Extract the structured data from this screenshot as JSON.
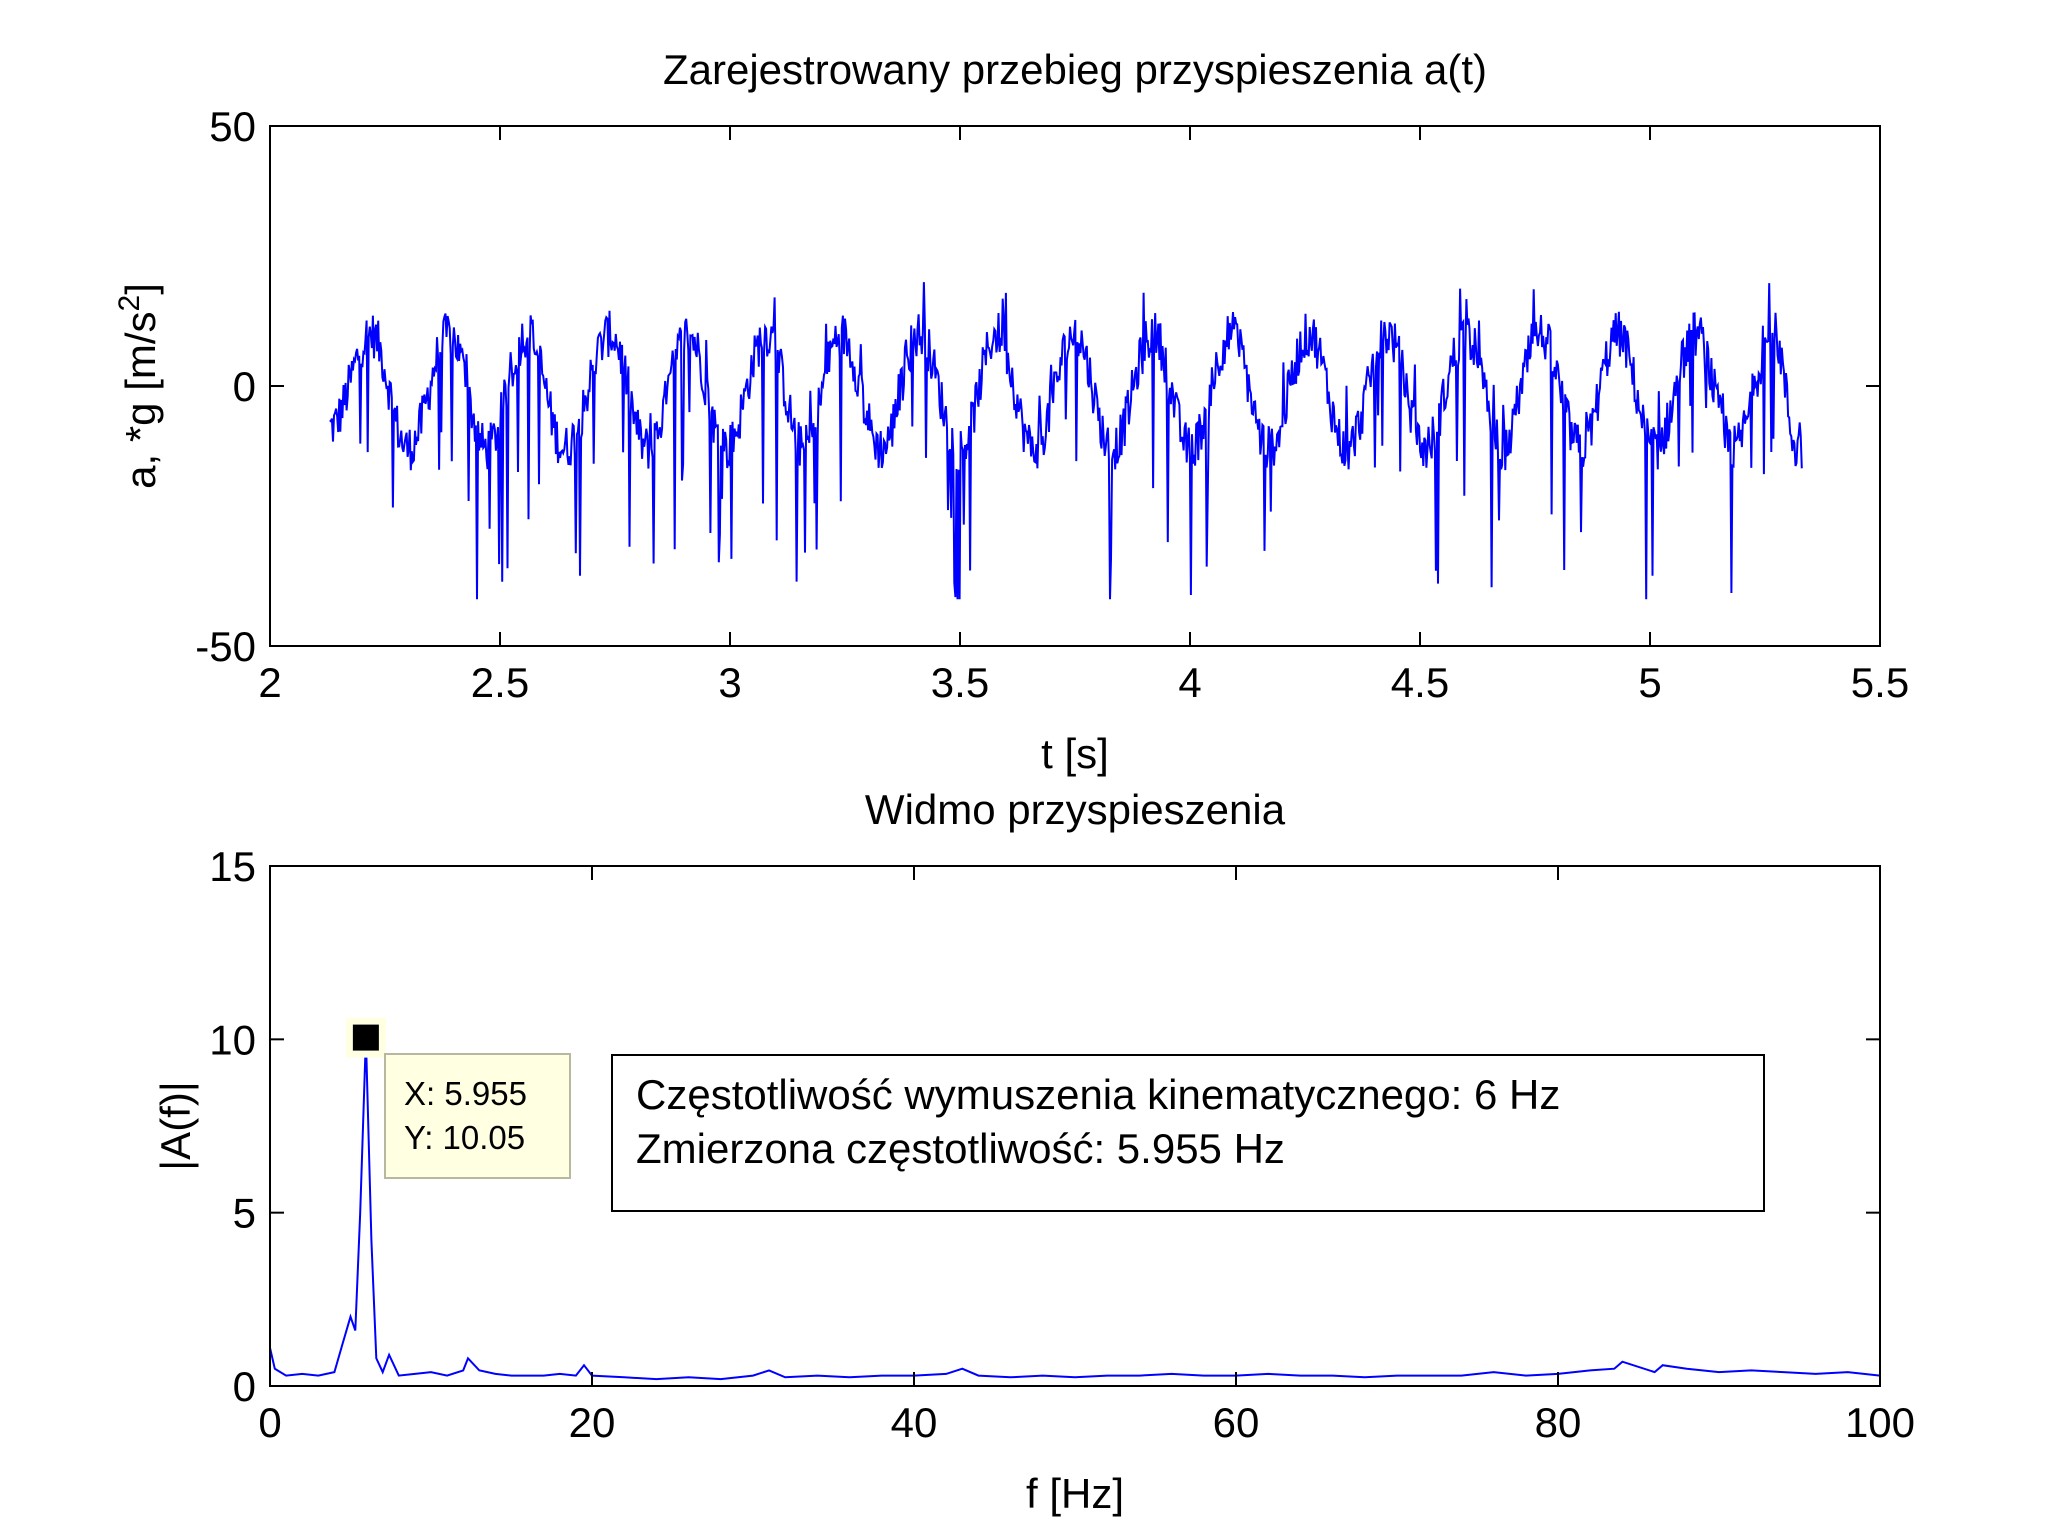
{
  "colors": {
    "series": "#0000ff",
    "axes": "#000000",
    "tooltip_bg": "#ffffe1",
    "tooltip_marker": "#000000"
  },
  "chart_data": [
    {
      "type": "line",
      "title": "Zarejestrowany przebieg przyspieszenia a(t)",
      "xlabel": "t [s]",
      "ylabel": "a, *g [m/s",
      "ylabel_superscript": "2",
      "ylabel_end": "]",
      "xlim": [
        2,
        5.5
      ],
      "ylim": [
        -50,
        50
      ],
      "xticks": [
        2,
        2.5,
        3,
        3.5,
        4,
        4.5,
        5,
        5.5
      ],
      "xtick_labels": [
        "2",
        "2.5",
        "3",
        "3.5",
        "4",
        "4.5",
        "5",
        "5.5"
      ],
      "yticks": [
        -50,
        0,
        50
      ],
      "ytick_labels": [
        "-50",
        "0",
        "50"
      ],
      "grid": false,
      "series": [
        {
          "t_start": 2.13,
          "t_end": 5.33,
          "dominant_frequency_hz": 6,
          "amplitude_range": [
            -41,
            21
          ],
          "peak_times_approx": [
            2.22,
            2.39,
            2.56,
            2.74,
            2.91,
            3.08,
            3.24,
            3.41,
            3.58,
            3.75,
            3.92,
            4.09,
            4.26,
            4.43,
            4.6,
            4.76,
            4.93,
            5.1,
            5.27
          ],
          "trough_times_approx": [
            2.3,
            2.47,
            2.64,
            2.82,
            2.99,
            3.16,
            3.33,
            3.5,
            3.66,
            3.83,
            4.0,
            4.17,
            4.34,
            4.51,
            4.68,
            4.85,
            5.01,
            5.18,
            5.32
          ]
        }
      ]
    },
    {
      "type": "line",
      "title": "Widmo przyspieszenia",
      "xlabel": "f [Hz]",
      "ylabel": "|A(f)|",
      "xlim": [
        0,
        100
      ],
      "ylim": [
        0,
        15
      ],
      "xticks": [
        0,
        20,
        40,
        60,
        80,
        100
      ],
      "xtick_labels": [
        "0",
        "20",
        "40",
        "60",
        "80",
        "100"
      ],
      "yticks": [
        0,
        5,
        10,
        15
      ],
      "ytick_labels": [
        "0",
        "5",
        "10",
        "15"
      ],
      "grid": false,
      "series": [
        {
          "x": [
            0,
            0.3,
            1,
            2,
            3,
            4,
            4.5,
            5,
            5.3,
            5.6,
            5.955,
            6.3,
            6.6,
            7,
            7.4,
            8,
            9,
            10,
            11,
            12,
            12.3,
            13,
            14,
            15,
            16,
            17,
            18,
            19,
            19.5,
            20,
            22,
            24,
            26,
            28,
            30,
            31,
            32,
            34,
            36,
            38,
            40,
            42,
            43,
            44,
            46,
            48,
            50,
            52,
            54,
            56,
            58,
            60,
            62,
            64,
            66,
            68,
            70,
            72,
            74,
            76,
            78,
            80,
            82,
            83.5,
            84,
            86,
            86.5,
            88,
            90,
            92,
            94,
            96,
            98,
            100
          ],
          "y": [
            1.1,
            0.5,
            0.3,
            0.35,
            0.3,
            0.4,
            1.2,
            2.0,
            1.6,
            5.0,
            10.05,
            4.2,
            0.8,
            0.4,
            0.9,
            0.3,
            0.35,
            0.4,
            0.3,
            0.45,
            0.8,
            0.45,
            0.35,
            0.3,
            0.3,
            0.3,
            0.35,
            0.3,
            0.6,
            0.3,
            0.25,
            0.2,
            0.25,
            0.2,
            0.3,
            0.45,
            0.25,
            0.3,
            0.25,
            0.3,
            0.3,
            0.35,
            0.5,
            0.3,
            0.25,
            0.3,
            0.25,
            0.3,
            0.3,
            0.35,
            0.3,
            0.3,
            0.35,
            0.3,
            0.3,
            0.25,
            0.3,
            0.3,
            0.3,
            0.4,
            0.3,
            0.35,
            0.45,
            0.5,
            0.7,
            0.4,
            0.6,
            0.5,
            0.4,
            0.45,
            0.4,
            0.35,
            0.4,
            0.3
          ]
        }
      ],
      "datatip": {
        "x": 5.955,
        "y": 10.05,
        "x_label": "X: 5.955",
        "y_label": "Y: 10.05"
      },
      "annotation": {
        "line1": "Częstotliwość wymuszenia kinematycznego: 6 Hz",
        "line2": "Zmierzona częstotliwość: 5.955 Hz"
      }
    }
  ]
}
